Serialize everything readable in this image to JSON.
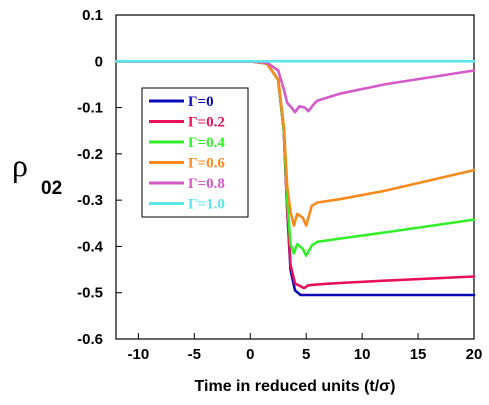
{
  "chart_data": {
    "type": "line",
    "title": "",
    "xlabel": "Time in reduced units (t/σ)",
    "ylabel_symbol": "ρ",
    "ylabel_subscript": "02",
    "xlim": [
      -12,
      20
    ],
    "ylim": [
      -0.6,
      0.1
    ],
    "xticks": [
      -10,
      -5,
      0,
      5,
      10,
      15,
      20
    ],
    "xtick_labels": [
      "-10",
      "-5",
      "0",
      "5",
      "10",
      "15",
      "20"
    ],
    "yticks": [
      0.1,
      0,
      -0.1,
      -0.2,
      -0.3,
      -0.4,
      -0.5,
      -0.6
    ],
    "ytick_labels": [
      "0.1",
      "0",
      "-0.1",
      "-0.2",
      "-0.3",
      "-0.4",
      "-0.5",
      "-0.6"
    ],
    "grid": false,
    "legend_position": "upper-left",
    "series": [
      {
        "name": "Γ=0",
        "color": "#0a0ab4",
        "x": [
          -12,
          0,
          1.5,
          2.5,
          3,
          3.3,
          3.6,
          4,
          4.5,
          5,
          6,
          8,
          12,
          20
        ],
        "y": [
          0,
          0,
          -0.005,
          -0.04,
          -0.15,
          -0.32,
          -0.45,
          -0.495,
          -0.505,
          -0.505,
          -0.505,
          -0.505,
          -0.505,
          -0.505
        ]
      },
      {
        "name": "Γ=0.2",
        "color": "#e8105a",
        "x": [
          -12,
          0,
          1.5,
          2.5,
          3,
          3.3,
          3.6,
          4,
          4.5,
          4.8,
          5.2,
          6,
          8,
          12,
          20
        ],
        "y": [
          0,
          0,
          -0.005,
          -0.04,
          -0.15,
          -0.32,
          -0.44,
          -0.48,
          -0.486,
          -0.49,
          -0.484,
          -0.482,
          -0.479,
          -0.474,
          -0.465
        ]
      },
      {
        "name": "Γ=0.4",
        "color": "#33ee2a",
        "x": [
          -12,
          0,
          1.5,
          2.5,
          3,
          3.3,
          3.6,
          3.9,
          4.2,
          4.7,
          5,
          5.5,
          6,
          8,
          12,
          20
        ],
        "y": [
          0,
          0,
          -0.005,
          -0.04,
          -0.15,
          -0.3,
          -0.395,
          -0.415,
          -0.395,
          -0.405,
          -0.42,
          -0.398,
          -0.39,
          -0.383,
          -0.37,
          -0.342
        ]
      },
      {
        "name": "Γ=0.6",
        "color": "#f78a1c",
        "x": [
          -12,
          0,
          1.5,
          2.5,
          3,
          3.3,
          3.6,
          3.9,
          4.2,
          4.7,
          5,
          5.5,
          6,
          8,
          12,
          20
        ],
        "y": [
          0,
          0,
          -0.005,
          -0.04,
          -0.14,
          -0.27,
          -0.325,
          -0.355,
          -0.33,
          -0.338,
          -0.355,
          -0.312,
          -0.305,
          -0.298,
          -0.28,
          -0.235
        ]
      },
      {
        "name": "Γ=0.8",
        "color": "#d45ac8",
        "x": [
          -12,
          0,
          1.5,
          2.5,
          3,
          3.3,
          3.7,
          4,
          4.4,
          4.9,
          5.2,
          5.7,
          6,
          8,
          12,
          20
        ],
        "y": [
          0,
          0,
          -0.003,
          -0.02,
          -0.06,
          -0.09,
          -0.1,
          -0.11,
          -0.097,
          -0.1,
          -0.108,
          -0.092,
          -0.085,
          -0.07,
          -0.05,
          -0.02
        ]
      },
      {
        "name": "Γ=1.0",
        "color": "#5ce6ee",
        "x": [
          -12,
          20
        ],
        "y": [
          0,
          0
        ]
      }
    ]
  }
}
